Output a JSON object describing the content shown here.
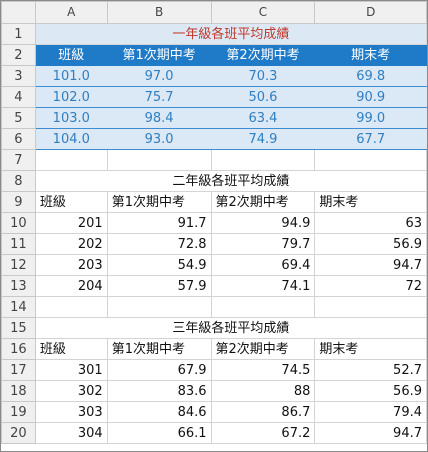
{
  "columns": [
    "A",
    "B",
    "C",
    "D"
  ],
  "rows": [
    "1",
    "2",
    "3",
    "4",
    "5",
    "6",
    "7",
    "8",
    "9",
    "10",
    "11",
    "12",
    "13",
    "14",
    "15",
    "16",
    "17",
    "18",
    "19",
    "20"
  ],
  "table1": {
    "title": "一年級各班平均成績",
    "headers": [
      "班級",
      "第1次期中考",
      "第2次期中考",
      "期末考"
    ],
    "data": [
      [
        "101.0",
        "97.0",
        "70.3",
        "69.8"
      ],
      [
        "102.0",
        "75.7",
        "50.6",
        "90.9"
      ],
      [
        "103.0",
        "98.4",
        "63.4",
        "99.0"
      ],
      [
        "104.0",
        "93.0",
        "74.9",
        "67.7"
      ]
    ]
  },
  "table2": {
    "title": "二年級各班平均成績",
    "headers": [
      "班級",
      "第1次期中考",
      "第2次期中考",
      "期末考"
    ],
    "data": [
      [
        "201",
        "91.7",
        "94.9",
        "63"
      ],
      [
        "202",
        "72.8",
        "79.7",
        "56.9"
      ],
      [
        "203",
        "54.9",
        "69.4",
        "94.7"
      ],
      [
        "204",
        "57.9",
        "74.1",
        "72"
      ]
    ]
  },
  "table3": {
    "title": "三年級各班平均成績",
    "headers": [
      "班級",
      "第1次期中考",
      "第2次期中考",
      "期末考"
    ],
    "data": [
      [
        "301",
        "67.9",
        "74.5",
        "52.7"
      ],
      [
        "302",
        "83.6",
        "88",
        "56.9"
      ],
      [
        "303",
        "84.6",
        "86.7",
        "79.4"
      ],
      [
        "304",
        "66.1",
        "67.2",
        "94.7"
      ]
    ]
  },
  "colors": {
    "header_fill": "#1f7ac7",
    "band_fill": "#dbe8f5",
    "band_text": "#2f7fc2",
    "title_red": "#c0392b",
    "grid": "#d4d4d4"
  }
}
